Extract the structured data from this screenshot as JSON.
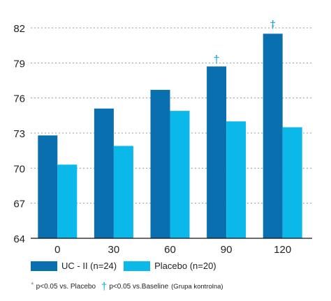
{
  "chart_data": {
    "type": "bar",
    "categories": [
      "0",
      "30",
      "60",
      "90",
      "120"
    ],
    "series": [
      {
        "name": "UC - II (n=24)",
        "values": [
          72.8,
          75.1,
          76.7,
          78.7,
          81.5
        ],
        "color": "#0a6fae"
      },
      {
        "name": "Placebo (n=20)",
        "values": [
          70.3,
          71.9,
          74.9,
          74.0,
          73.5
        ],
        "color": "#0bb8ea"
      }
    ],
    "y_ticks": [
      "64",
      "67",
      "70",
      "73",
      "76",
      "79",
      "82"
    ],
    "ylim": [
      64,
      82
    ],
    "grid": true,
    "legend_position": "bottom-left",
    "annotations": [
      {
        "category": "90",
        "series": "UC - II (n=24)",
        "symbols": [
          "†"
        ]
      },
      {
        "category": "120",
        "series": "UC - II (n=24)",
        "symbols": [
          "†",
          "*"
        ]
      }
    ]
  },
  "legend": {
    "series1_label": "UC - II (n=24)",
    "series2_label": "Placebo (n=20)"
  },
  "footnote": {
    "asterisk": "*",
    "asterisk_text": "p<0.05 vs. Placebo",
    "dagger": "†",
    "dagger_text": "p<0.05 vs.Baseline",
    "note": "(Grupa kontrolna)"
  },
  "colors": {
    "series1": "#0a6fae",
    "series2": "#0bb8ea",
    "dagger": "#12a7db",
    "asterisk": "#999999"
  }
}
